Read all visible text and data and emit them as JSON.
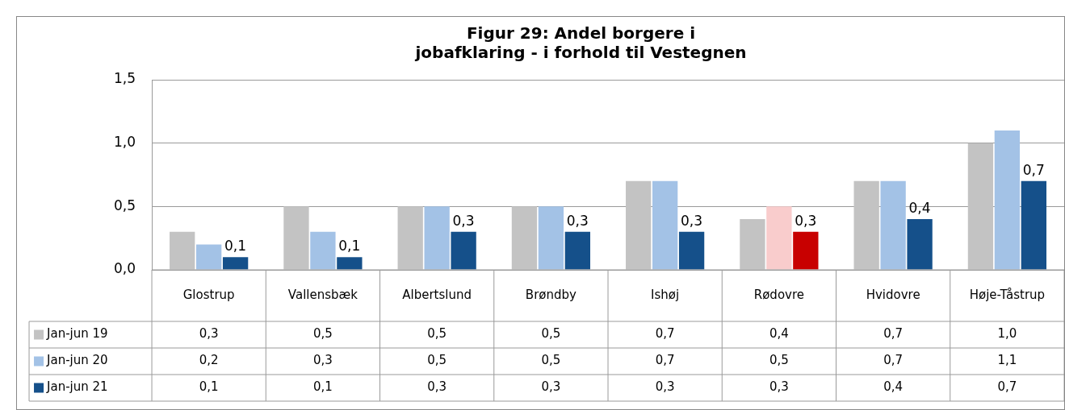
{
  "chart_data": {
    "type": "bar",
    "title": "Figur 29: Andel borgere i jobafklaring - i forhold til Vestegnen",
    "categories": [
      "Glostrup",
      "Vallensbæk",
      "Albertslund",
      "Brøndby",
      "Ishøj",
      "Rødovre",
      "Hvidovre",
      "Høje-Tåstrup"
    ],
    "series": [
      {
        "name": "Jan-jun 19",
        "color": "#c3c3c3",
        "colors": [
          "#c3c3c3",
          "#c3c3c3",
          "#c3c3c3",
          "#c3c3c3",
          "#c3c3c3",
          "#c3c3c3",
          "#c3c3c3",
          "#c3c3c3"
        ],
        "values": [
          0.3,
          0.5,
          0.5,
          0.5,
          0.7,
          0.4,
          0.7,
          1.0
        ],
        "value_labels": [
          "0,3",
          "0,5",
          "0,5",
          "0,5",
          "0,7",
          "0,4",
          "0,7",
          "1,0"
        ]
      },
      {
        "name": "Jan-jun 20",
        "color": "#a3c2e6",
        "colors": [
          "#a3c2e6",
          "#a3c2e6",
          "#a3c2e6",
          "#a3c2e6",
          "#a3c2e6",
          "#f9cccc",
          "#a3c2e6",
          "#a3c2e6"
        ],
        "values": [
          0.2,
          0.3,
          0.5,
          0.5,
          0.7,
          0.5,
          0.7,
          1.1
        ],
        "value_labels": [
          "0,2",
          "0,3",
          "0,5",
          "0,5",
          "0,7",
          "0,5",
          "0,7",
          "1,1"
        ]
      },
      {
        "name": "Jan-jun 21",
        "color": "#15508a",
        "colors": [
          "#15508a",
          "#15508a",
          "#15508a",
          "#15508a",
          "#15508a",
          "#c80000",
          "#15508a",
          "#15508a"
        ],
        "values": [
          0.1,
          0.1,
          0.3,
          0.3,
          0.3,
          0.3,
          0.4,
          0.7
        ],
        "value_labels": [
          "0,1",
          "0,1",
          "0,3",
          "0,3",
          "0,3",
          "0,3",
          "0,4",
          "0,7"
        ],
        "data_labels": true
      }
    ],
    "ylim": [
      0,
      1.5
    ],
    "yticks": [
      {
        "value": 0,
        "label": "0,0"
      },
      {
        "value": 0.5,
        "label": "0,5"
      },
      {
        "value": 1.0,
        "label": "1,0"
      },
      {
        "value": 1.5,
        "label": "1,5"
      }
    ],
    "grid": "y",
    "legend": "bottom",
    "data_labels": true
  }
}
